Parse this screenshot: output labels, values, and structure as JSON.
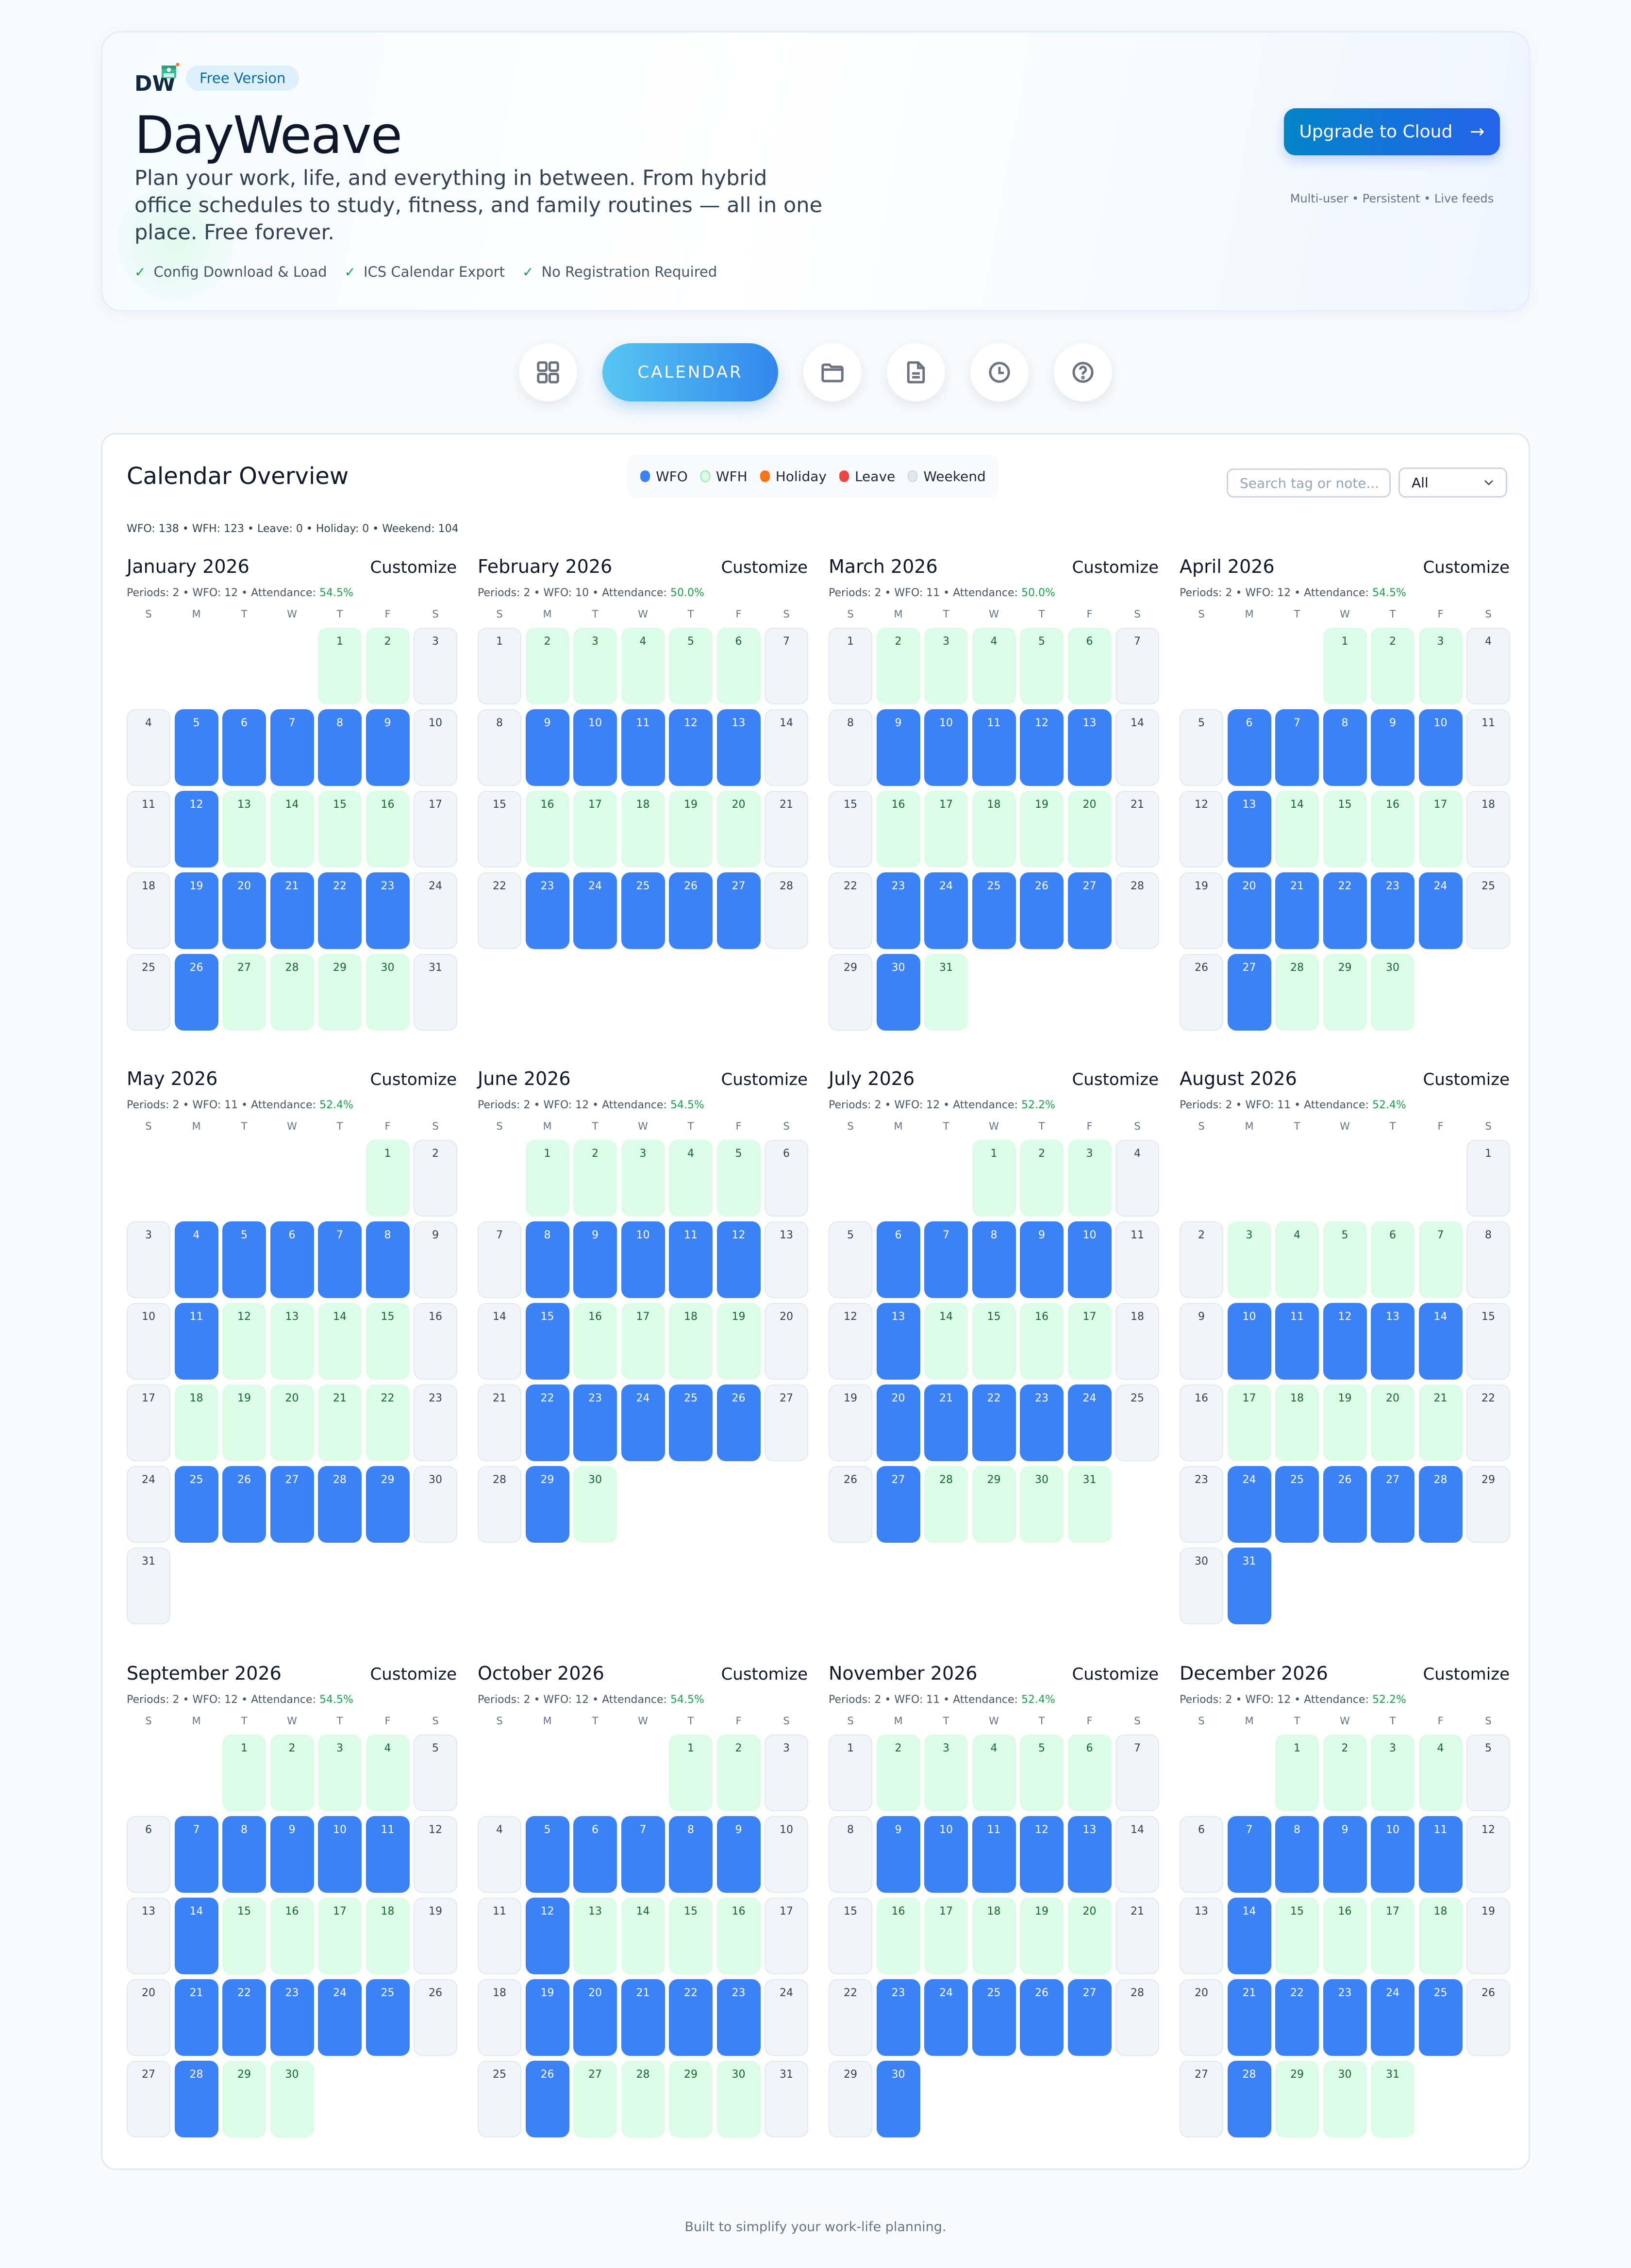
{
  "hero": {
    "logo_text": "DW",
    "badge": "Free Version",
    "title": "DayWeave",
    "description": "Plan your work, life, and everything in between. From hybrid office schedules to study, fitness, and family routines — all in one place. Free forever.",
    "features": [
      "Config Download & Load",
      "ICS Calendar Export",
      "No Registration Required"
    ],
    "upgrade_label": "Upgrade to Cloud",
    "upgrade_arrow": "→",
    "upgrade_sub": "Multi-user • Persistent • Live feeds"
  },
  "nav": {
    "items": [
      {
        "icon": "grid-icon",
        "label": ""
      },
      {
        "icon": "calendar",
        "label": "CALENDAR",
        "active": true
      },
      {
        "icon": "folder-icon",
        "label": ""
      },
      {
        "icon": "document-icon",
        "label": ""
      },
      {
        "icon": "clock-icon",
        "label": ""
      },
      {
        "icon": "help-icon",
        "label": ""
      }
    ]
  },
  "overview": {
    "title": "Calendar Overview",
    "legend": [
      {
        "label": "WFO",
        "color": "#3b82f6"
      },
      {
        "label": "WFH",
        "color": "#dcfce7",
        "border": "#86efac"
      },
      {
        "label": "Holiday",
        "color": "#f97316"
      },
      {
        "label": "Leave",
        "color": "#ef4444"
      },
      {
        "label": "Weekend",
        "color": "#e2e8f0"
      }
    ],
    "search_placeholder": "Search tag or note...",
    "filter_value": "All",
    "summary": "WFO: 138 • WFH: 123 • Leave: 0 • Holiday: 0 • Weekend: 104"
  },
  "weekday_labels": [
    "S",
    "M",
    "T",
    "W",
    "T",
    "F",
    "S"
  ],
  "customize_label": "Customize",
  "months": [
    {
      "title": "January 2026",
      "stats_prefix": "Periods: 2 • WFO: 12 • Attendance: ",
      "attendance": "54.5%",
      "start": 4,
      "days": 31,
      "types": "HHW W OOOOOW WOHHHHW WOOOOOW WOHHHHW"
    },
    {
      "title": "February 2026",
      "stats_prefix": "Periods: 2 • WFO: 10 • Attendance: ",
      "attendance": "50.0%",
      "start": 0,
      "days": 28,
      "types": "WHHHHHW WOOOOOW WHHHHHW WOOOOOW"
    },
    {
      "title": "March 2026",
      "stats_prefix": "Periods: 2 • WFO: 11 • Attendance: ",
      "attendance": "50.0%",
      "start": 0,
      "days": 31,
      "types": "WHHHHHW WOOOOOW WHHHHHW WOOOOOW WOH"
    },
    {
      "title": "April 2026",
      "stats_prefix": "Periods: 2 • WFO: 12 • Attendance: ",
      "attendance": "54.5%",
      "start": 3,
      "days": 30,
      "types": "HHHW WOOOOOW WOHHHHW WOOOOOW WOHHH"
    },
    {
      "title": "May 2026",
      "stats_prefix": "Periods: 2 • WFO: 11 • Attendance: ",
      "attendance": "52.4%",
      "start": 5,
      "days": 31,
      "types": "HW WOOOOOW WOHHHHW WHHHHHW WOOOOOW W"
    },
    {
      "title": "June 2026",
      "stats_prefix": "Periods: 2 • WFO: 12 • Attendance: ",
      "attendance": "54.5%",
      "start": 1,
      "days": 30,
      "types": "HHHHHW WOOOOOW WOHHHHW WOOOOOW WOH"
    },
    {
      "title": "July 2026",
      "stats_prefix": "Periods: 2 • WFO: 12 • Attendance: ",
      "attendance": "52.2%",
      "start": 3,
      "days": 31,
      "types": "HHHW WOOOOOW WOHHHHW WOOOOOW WOHHHH"
    },
    {
      "title": "August 2026",
      "stats_prefix": "Periods: 2 • WFO: 11 • Attendance: ",
      "attendance": "52.4%",
      "start": 6,
      "days": 31,
      "types": "W WHHHHHW WOOOOOW WHHHHHW WOOOOOW WO"
    },
    {
      "title": "September 2026",
      "stats_prefix": "Periods: 2 • WFO: 12 • Attendance: ",
      "attendance": "54.5%",
      "start": 2,
      "days": 30,
      "types": "HHHHW WOOOOOW WOHHHHW WOOOOOW WOHH"
    },
    {
      "title": "October 2026",
      "stats_prefix": "Periods: 2 • WFO: 12 • Attendance: ",
      "attendance": "54.5%",
      "start": 4,
      "days": 31,
      "types": "HHW WOOOOOW WOHHHHW WOOOOOW WOHHHHW"
    },
    {
      "title": "November 2026",
      "stats_prefix": "Periods: 2 • WFO: 11 • Attendance: ",
      "attendance": "52.4%",
      "start": 0,
      "days": 30,
      "types": "WHHHHHW WOOOOOW WHHHHHW WOOOOOW WO"
    },
    {
      "title": "December 2026",
      "stats_prefix": "Periods: 2 • WFO: 12 • Attendance: ",
      "attendance": "52.2%",
      "start": 2,
      "days": 31,
      "types": "HHHHW WOOOOOW WOHHHHW WOOOOOW WOHHH"
    }
  ],
  "footer": "Built to simplify your work-life planning."
}
